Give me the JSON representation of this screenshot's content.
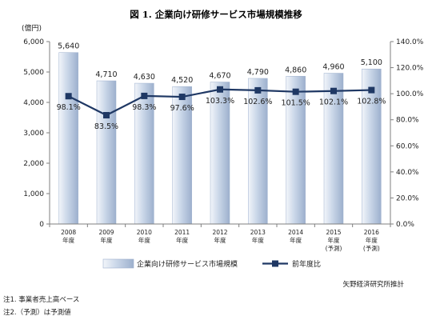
{
  "chart_data": {
    "type": "bar",
    "title": "図 1. 企業向け研修サービス市場規模推移",
    "y_unit": "(億円)",
    "categories": [
      [
        "2008",
        "年度"
      ],
      [
        "2009",
        "年度"
      ],
      [
        "2010",
        "年度"
      ],
      [
        "2011",
        "年度"
      ],
      [
        "2012",
        "年度"
      ],
      [
        "2013",
        "年度"
      ],
      [
        "2014",
        "年度"
      ],
      [
        "2015",
        "年度",
        "(予測)"
      ],
      [
        "2016",
        "年度",
        "(予測)"
      ]
    ],
    "series": [
      {
        "name": "企業向け研修サービス市場規模",
        "type": "bar",
        "axis": "left",
        "values": [
          5640,
          4710,
          4630,
          4520,
          4670,
          4790,
          4860,
          4960,
          5100
        ],
        "labels": [
          "5,640",
          "4,710",
          "4,630",
          "4,520",
          "4,670",
          "4,790",
          "4,860",
          "4,960",
          "5,100"
        ]
      },
      {
        "name": "前年度比",
        "type": "line",
        "axis": "right",
        "values": [
          98.1,
          83.5,
          98.3,
          97.6,
          103.3,
          102.6,
          101.5,
          102.1,
          102.8
        ],
        "labels": [
          "98.1%",
          "83.5%",
          "98.3%",
          "97.6%",
          "103.3%",
          "102.6%",
          "101.5%",
          "102.1%",
          "102.8%"
        ]
      }
    ],
    "y_left": {
      "min": 0,
      "max": 6000,
      "ticks": [
        0,
        1000,
        2000,
        3000,
        4000,
        5000,
        6000
      ],
      "tick_labels": [
        "0",
        "1,000",
        "2,000",
        "3,000",
        "4,000",
        "5,000",
        "6,000"
      ]
    },
    "y_right": {
      "min": 0,
      "max": 140,
      "ticks": [
        0,
        20,
        40,
        60,
        80,
        100,
        120,
        140
      ],
      "tick_labels": [
        "0.0%",
        "20.0%",
        "40.0%",
        "60.0%",
        "80.0%",
        "100.0%",
        "120.0%",
        "140.0%"
      ]
    },
    "grid": false,
    "legend_position": "bottom",
    "source": "矢野経済研究所推計",
    "notes": [
      "注1. 事業者売上高ベース",
      "注2.（予測）は予測値"
    ],
    "colors": {
      "bar_light": "#f2f5fa",
      "bar_mid": "#c9d6e8",
      "bar_dark": "#9db0cd",
      "line": "#1f3864",
      "axis": "#7f7f7f"
    }
  }
}
